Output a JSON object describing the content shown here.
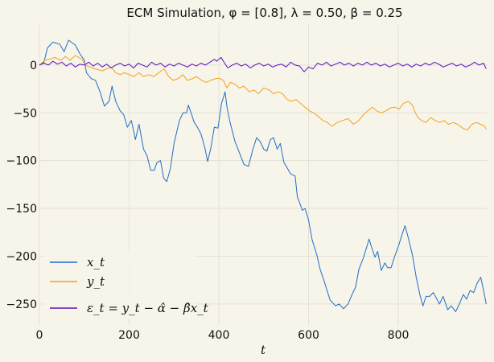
{
  "chart_data": {
    "type": "line",
    "title": "ECM Simulation, φ = [0.8], λ = 0.50, β = 0.25",
    "xlabel": "t",
    "ylabel": "",
    "xlim": [
      0,
      999
    ],
    "ylim": [
      -272,
      42
    ],
    "xticks": [
      0,
      200,
      400,
      600,
      800
    ],
    "yticks": [
      0,
      -50,
      -100,
      -150,
      -200,
      -250
    ],
    "grid": true,
    "legend_position": "lower-left",
    "colors": {
      "x": "#1f6fc9",
      "y": "#f2a21c",
      "eps": "#5a0fbf",
      "background": "#f7f4e9"
    },
    "series": [
      {
        "name": "x_t",
        "color": "#1f6fc9",
        "points": [
          [
            0,
            0
          ],
          [
            10,
            3
          ],
          [
            18,
            18
          ],
          [
            30,
            24
          ],
          [
            45,
            22
          ],
          [
            55,
            14
          ],
          [
            65,
            26
          ],
          [
            80,
            21
          ],
          [
            90,
            12
          ],
          [
            100,
            5
          ],
          [
            105,
            -8
          ],
          [
            115,
            -14
          ],
          [
            125,
            -16
          ],
          [
            135,
            -28
          ],
          [
            145,
            -43
          ],
          [
            155,
            -38
          ],
          [
            162,
            -22
          ],
          [
            170,
            -38
          ],
          [
            180,
            -48
          ],
          [
            188,
            -52
          ],
          [
            196,
            -65
          ],
          [
            205,
            -58
          ],
          [
            214,
            -78
          ],
          [
            222,
            -62
          ],
          [
            232,
            -88
          ],
          [
            240,
            -95
          ],
          [
            248,
            -110
          ],
          [
            256,
            -110
          ],
          [
            262,
            -102
          ],
          [
            270,
            -100
          ],
          [
            277,
            -118
          ],
          [
            284,
            -122
          ],
          [
            292,
            -108
          ],
          [
            300,
            -82
          ],
          [
            312,
            -58
          ],
          [
            320,
            -50
          ],
          [
            328,
            -50
          ],
          [
            332,
            -42
          ],
          [
            338,
            -50
          ],
          [
            345,
            -60
          ],
          [
            352,
            -65
          ],
          [
            360,
            -72
          ],
          [
            368,
            -85
          ],
          [
            375,
            -101
          ],
          [
            382,
            -87
          ],
          [
            390,
            -65
          ],
          [
            398,
            -66
          ],
          [
            406,
            -40
          ],
          [
            414,
            -28
          ],
          [
            418,
            -44
          ],
          [
            425,
            -60
          ],
          [
            436,
            -80
          ],
          [
            446,
            -92
          ],
          [
            456,
            -104
          ],
          [
            466,
            -106
          ],
          [
            476,
            -88
          ],
          [
            484,
            -76
          ],
          [
            492,
            -80
          ],
          [
            500,
            -88
          ],
          [
            507,
            -90
          ],
          [
            515,
            -78
          ],
          [
            522,
            -76
          ],
          [
            530,
            -88
          ],
          [
            537,
            -82
          ],
          [
            545,
            -102
          ],
          [
            553,
            -108
          ],
          [
            560,
            -114
          ],
          [
            570,
            -116
          ],
          [
            575,
            -138
          ],
          [
            580,
            -144
          ],
          [
            586,
            -152
          ],
          [
            592,
            -150
          ],
          [
            600,
            -162
          ],
          [
            608,
            -183
          ],
          [
            618,
            -198
          ],
          [
            626,
            -214
          ],
          [
            636,
            -228
          ],
          [
            648,
            -246
          ],
          [
            660,
            -252
          ],
          [
            668,
            -250
          ],
          [
            678,
            -255
          ],
          [
            688,
            -250
          ],
          [
            697,
            -240
          ],
          [
            705,
            -232
          ],
          [
            712,
            -214
          ],
          [
            722,
            -202
          ],
          [
            735,
            -182
          ],
          [
            740,
            -190
          ],
          [
            748,
            -201
          ],
          [
            754,
            -195
          ],
          [
            762,
            -215
          ],
          [
            770,
            -207
          ],
          [
            776,
            -212
          ],
          [
            784,
            -212
          ],
          [
            792,
            -200
          ],
          [
            800,
            -190
          ],
          [
            808,
            -178
          ],
          [
            815,
            -168
          ],
          [
            823,
            -182
          ],
          [
            832,
            -200
          ],
          [
            840,
            -222
          ],
          [
            848,
            -240
          ],
          [
            855,
            -252
          ],
          [
            862,
            -242
          ],
          [
            870,
            -242
          ],
          [
            878,
            -238
          ],
          [
            885,
            -244
          ],
          [
            892,
            -250
          ],
          [
            900,
            -242
          ],
          [
            910,
            -256
          ],
          [
            918,
            -252
          ],
          [
            928,
            -258
          ],
          [
            936,
            -250
          ],
          [
            945,
            -240
          ],
          [
            952,
            -245
          ],
          [
            960,
            -236
          ],
          [
            968,
            -238
          ],
          [
            976,
            -228
          ],
          [
            984,
            -222
          ],
          [
            990,
            -236
          ],
          [
            996,
            -250
          ]
        ]
      },
      {
        "name": "y_t",
        "color": "#f2a21c",
        "points": [
          [
            0,
            0
          ],
          [
            12,
            5
          ],
          [
            22,
            6
          ],
          [
            35,
            8
          ],
          [
            48,
            5
          ],
          [
            58,
            9
          ],
          [
            68,
            5
          ],
          [
            80,
            10
          ],
          [
            95,
            6
          ],
          [
            102,
            0
          ],
          [
            112,
            -2
          ],
          [
            125,
            -4
          ],
          [
            140,
            -6
          ],
          [
            150,
            -4
          ],
          [
            160,
            -2
          ],
          [
            170,
            -8
          ],
          [
            180,
            -10
          ],
          [
            190,
            -8
          ],
          [
            200,
            -10
          ],
          [
            210,
            -12
          ],
          [
            222,
            -8
          ],
          [
            232,
            -12
          ],
          [
            244,
            -10
          ],
          [
            255,
            -12
          ],
          [
            266,
            -8
          ],
          [
            278,
            -4
          ],
          [
            288,
            -12
          ],
          [
            298,
            -16
          ],
          [
            310,
            -14
          ],
          [
            320,
            -10
          ],
          [
            330,
            -16
          ],
          [
            342,
            -14
          ],
          [
            350,
            -12
          ],
          [
            362,
            -16
          ],
          [
            372,
            -18
          ],
          [
            382,
            -16
          ],
          [
            394,
            -14
          ],
          [
            402,
            -14
          ],
          [
            410,
            -16
          ],
          [
            418,
            -24
          ],
          [
            426,
            -18
          ],
          [
            436,
            -20
          ],
          [
            446,
            -24
          ],
          [
            456,
            -22
          ],
          [
            468,
            -28
          ],
          [
            478,
            -26
          ],
          [
            488,
            -30
          ],
          [
            500,
            -24
          ],
          [
            512,
            -26
          ],
          [
            522,
            -30
          ],
          [
            532,
            -28
          ],
          [
            542,
            -30
          ],
          [
            552,
            -36
          ],
          [
            562,
            -38
          ],
          [
            572,
            -36
          ],
          [
            582,
            -40
          ],
          [
            592,
            -44
          ],
          [
            602,
            -48
          ],
          [
            612,
            -50
          ],
          [
            622,
            -54
          ],
          [
            632,
            -58
          ],
          [
            642,
            -60
          ],
          [
            652,
            -64
          ],
          [
            664,
            -60
          ],
          [
            676,
            -58
          ],
          [
            688,
            -56
          ],
          [
            700,
            -62
          ],
          [
            712,
            -58
          ],
          [
            722,
            -52
          ],
          [
            732,
            -48
          ],
          [
            742,
            -44
          ],
          [
            752,
            -48
          ],
          [
            762,
            -50
          ],
          [
            772,
            -48
          ],
          [
            782,
            -45
          ],
          [
            792,
            -44
          ],
          [
            802,
            -46
          ],
          [
            812,
            -40
          ],
          [
            822,
            -38
          ],
          [
            832,
            -42
          ],
          [
            838,
            -50
          ],
          [
            844,
            -55
          ],
          [
            852,
            -58
          ],
          [
            862,
            -60
          ],
          [
            872,
            -55
          ],
          [
            882,
            -58
          ],
          [
            892,
            -60
          ],
          [
            902,
            -58
          ],
          [
            912,
            -62
          ],
          [
            922,
            -60
          ],
          [
            932,
            -62
          ],
          [
            944,
            -66
          ],
          [
            954,
            -68
          ],
          [
            964,
            -62
          ],
          [
            974,
            -60
          ],
          [
            984,
            -62
          ],
          [
            992,
            -64
          ],
          [
            996,
            -67
          ]
        ]
      },
      {
        "name": "ε_t = y_t − α̂ − β̂x_t",
        "color": "#5a0fbf",
        "points": [
          [
            0,
            0
          ],
          [
            10,
            2
          ],
          [
            20,
            0
          ],
          [
            30,
            4
          ],
          [
            40,
            1
          ],
          [
            50,
            3
          ],
          [
            60,
            -1
          ],
          [
            70,
            2
          ],
          [
            80,
            -2
          ],
          [
            90,
            1
          ],
          [
            100,
            0
          ],
          [
            110,
            3
          ],
          [
            120,
            -1
          ],
          [
            130,
            2
          ],
          [
            140,
            -2
          ],
          [
            150,
            1
          ],
          [
            160,
            -3
          ],
          [
            170,
            0
          ],
          [
            180,
            2
          ],
          [
            190,
            -1
          ],
          [
            200,
            1
          ],
          [
            210,
            -3
          ],
          [
            220,
            2
          ],
          [
            230,
            0
          ],
          [
            240,
            -2
          ],
          [
            250,
            3
          ],
          [
            260,
            0
          ],
          [
            270,
            2
          ],
          [
            280,
            -2
          ],
          [
            290,
            1
          ],
          [
            300,
            -1
          ],
          [
            310,
            2
          ],
          [
            320,
            0
          ],
          [
            330,
            -2
          ],
          [
            340,
            1
          ],
          [
            350,
            -1
          ],
          [
            360,
            2
          ],
          [
            370,
            0
          ],
          [
            380,
            3
          ],
          [
            390,
            6
          ],
          [
            395,
            4
          ],
          [
            400,
            6
          ],
          [
            405,
            8
          ],
          [
            410,
            4
          ],
          [
            420,
            -3
          ],
          [
            430,
            0
          ],
          [
            440,
            2
          ],
          [
            450,
            -1
          ],
          [
            460,
            1
          ],
          [
            470,
            -3
          ],
          [
            480,
            0
          ],
          [
            490,
            2
          ],
          [
            500,
            -1
          ],
          [
            510,
            1
          ],
          [
            520,
            -2
          ],
          [
            530,
            0
          ],
          [
            540,
            1
          ],
          [
            550,
            -2
          ],
          [
            560,
            3
          ],
          [
            570,
            0
          ],
          [
            580,
            -1
          ],
          [
            590,
            -7
          ],
          [
            600,
            -2
          ],
          [
            610,
            -4
          ],
          [
            620,
            2
          ],
          [
            630,
            0
          ],
          [
            640,
            3
          ],
          [
            650,
            -1
          ],
          [
            660,
            1
          ],
          [
            670,
            3
          ],
          [
            680,
            0
          ],
          [
            690,
            2
          ],
          [
            700,
            -1
          ],
          [
            710,
            2
          ],
          [
            720,
            0
          ],
          [
            730,
            3
          ],
          [
            740,
            0
          ],
          [
            750,
            2
          ],
          [
            760,
            -1
          ],
          [
            770,
            1
          ],
          [
            780,
            -2
          ],
          [
            790,
            0
          ],
          [
            800,
            2
          ],
          [
            810,
            -1
          ],
          [
            820,
            1
          ],
          [
            830,
            -2
          ],
          [
            840,
            1
          ],
          [
            850,
            -1
          ],
          [
            860,
            2
          ],
          [
            870,
            0
          ],
          [
            880,
            3
          ],
          [
            890,
            1
          ],
          [
            900,
            -2
          ],
          [
            910,
            0
          ],
          [
            920,
            2
          ],
          [
            930,
            -1
          ],
          [
            940,
            1
          ],
          [
            950,
            -2
          ],
          [
            960,
            0
          ],
          [
            970,
            3
          ],
          [
            980,
            0
          ],
          [
            990,
            2
          ],
          [
            996,
            -4
          ]
        ]
      }
    ]
  }
}
